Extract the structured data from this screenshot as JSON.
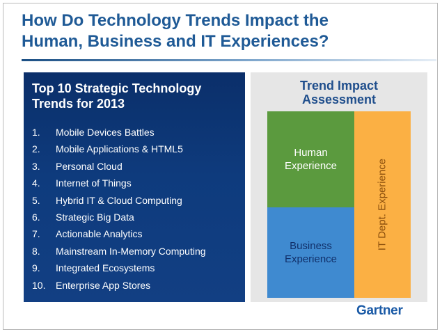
{
  "slide": {
    "title_lines": [
      "How Do Technology Trends Impact the",
      "Human, Business and IT Experiences?"
    ]
  },
  "trends_panel": {
    "title_lines": [
      "Top 10 Strategic Technology",
      "Trends for 2013"
    ],
    "items": [
      {
        "num": "1.",
        "label": "Mobile Devices Battles"
      },
      {
        "num": "2.",
        "label": "Mobile Applications & HTML5"
      },
      {
        "num": "3.",
        "label": "Personal Cloud"
      },
      {
        "num": "4.",
        "label": "Internet of Things"
      },
      {
        "num": "5.",
        "label": "Hybrid IT & Cloud Computing"
      },
      {
        "num": "6.",
        "label": "Strategic Big Data"
      },
      {
        "num": "7.",
        "label": "Actionable Analytics"
      },
      {
        "num": "8.",
        "label": "Mainstream In-Memory Computing"
      },
      {
        "num": "9.",
        "label": "Integrated Ecosystems"
      },
      {
        "num": "10.",
        "label": "Enterprise App Stores"
      }
    ]
  },
  "impact_panel": {
    "title_lines": [
      "Trend Impact",
      "Assessment"
    ],
    "human": {
      "lines": [
        "Human",
        "Experience"
      ],
      "color": "#5b9a3e"
    },
    "business": {
      "lines": [
        "Business",
        "Experience"
      ],
      "color": "#3f8ad0"
    },
    "it_dept": {
      "label": "IT Dept. Experience",
      "color": "#fbb044"
    }
  },
  "logo": {
    "text": "Gartner",
    "color": "#1a5aa6"
  },
  "colors": {
    "title": "#1f5a96",
    "trends_bg": "#0e3b7d",
    "impact_bg": "#e6e6e6"
  }
}
